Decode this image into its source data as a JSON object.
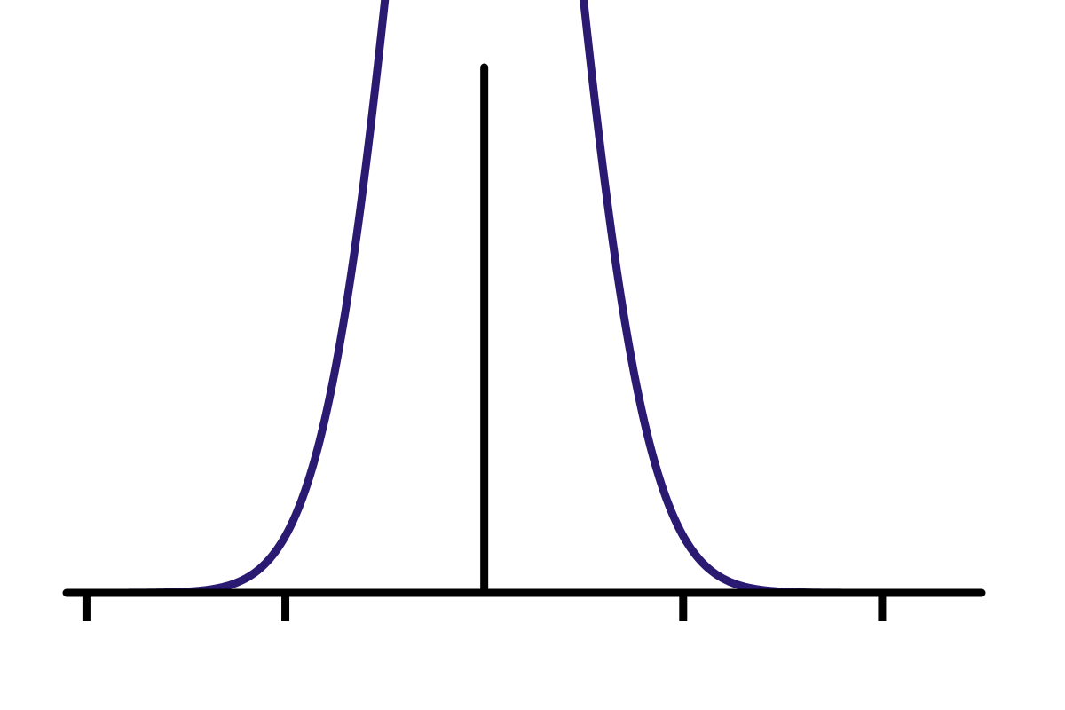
{
  "chart_data": {
    "type": "line",
    "title": "",
    "xlabel": "",
    "ylabel": "",
    "xlim": [
      -2.1,
      2.5
    ],
    "ylim": [
      0,
      0.43
    ],
    "x_ticks": [
      -2,
      -1,
      1,
      2
    ],
    "grid": false,
    "legend": "none",
    "series": [
      {
        "curve": "normal-density",
        "mean": 0,
        "std": 0.4,
        "x_range": [
          -1.82,
          1.92
        ],
        "color": "#2a1a72"
      }
    ]
  }
}
